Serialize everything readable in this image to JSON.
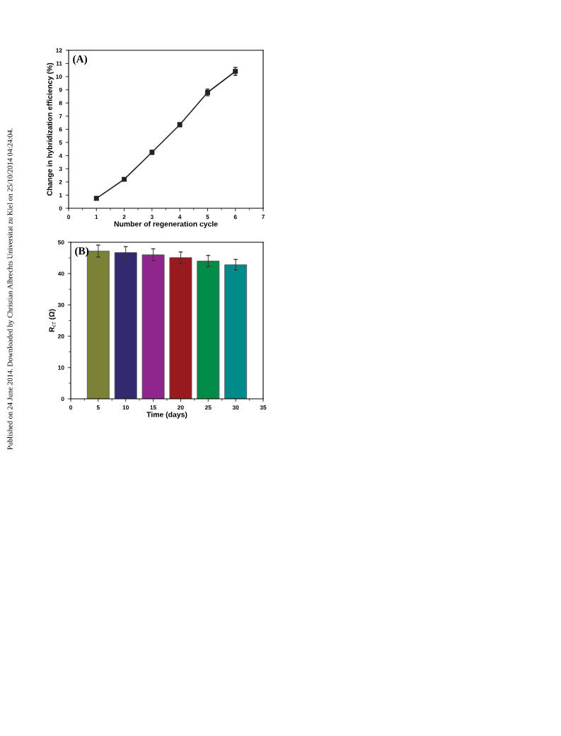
{
  "chart_data": [
    {
      "type": "line",
      "ylabel": "Change in hybridization efficiency (%)",
      "xlabel": "Number of regeneration cycle",
      "annotations": [
        "(A)",
        "Published on 24 June 2014. Downloaded by Christian Albrechts Universitat zu Kiel on 25/10/2014 04:24:04."
      ],
      "x": [
        1,
        2,
        3,
        4,
        5,
        6
      ],
      "series": [
        {
          "color": "#222222",
          "values": [
            0.75,
            2.2,
            4.25,
            6.35,
            8.8,
            10.4
          ],
          "errors": [
            0.1,
            0.1,
            0.15,
            0.15,
            0.25,
            0.3
          ]
        }
      ],
      "marker": "square",
      "line_style": "solid",
      "xlim": [
        0,
        7
      ],
      "xticks": [
        0,
        1,
        2,
        3,
        4,
        5,
        6,
        7
      ],
      "ylim": [
        0,
        12
      ],
      "yticks": [
        0,
        1,
        2,
        3,
        4,
        5,
        6,
        7,
        8,
        9,
        10,
        11,
        12
      ],
      "grid": false,
      "legend": false
    },
    {
      "type": "bar",
      "ylabel": "R$_{ct}$ (Ω)",
      "xlabel": "Time (days)",
      "annotations": [
        "(B)"
      ],
      "x": [
        5,
        10,
        15,
        20,
        25,
        30
      ],
      "values": [
        47.2,
        46.7,
        46.0,
        45.1,
        44.0,
        42.8
      ],
      "errors": [
        1.9,
        1.9,
        1.9,
        1.8,
        1.8,
        1.7
      ],
      "colors": [
        "#7a8235",
        "#312a6e",
        "#8e268e",
        "#961a1e",
        "#008c46",
        "#008b8a"
      ],
      "xlim": [
        0,
        35
      ],
      "xticks": [
        0,
        5,
        10,
        15,
        20,
        25,
        30,
        35
      ],
      "ylim": [
        0,
        50
      ],
      "yticks": [
        0,
        10,
        20,
        30,
        40,
        50
      ],
      "grid": false,
      "legend": false
    }
  ]
}
